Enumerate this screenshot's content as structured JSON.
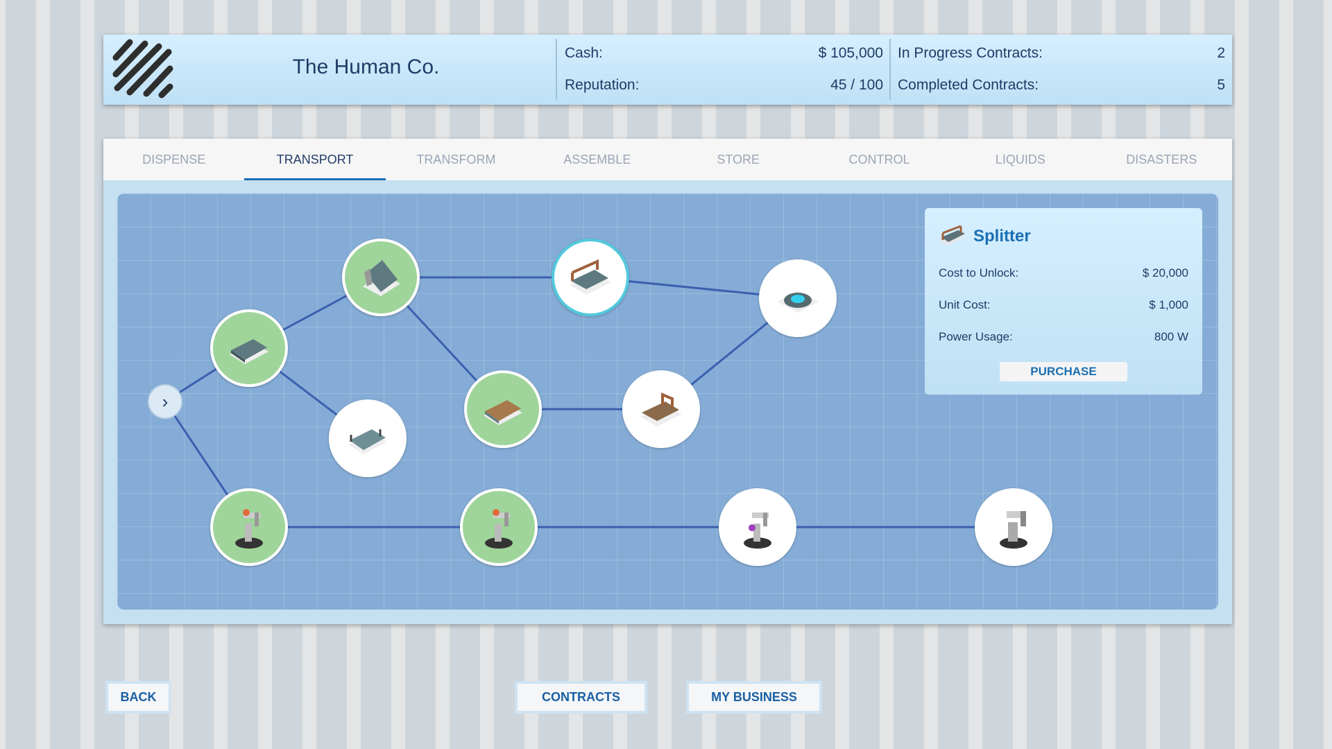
{
  "header": {
    "company_name": "The Human Co.",
    "logo": "striped-logo",
    "cash_label": "Cash:",
    "cash_value": "$ 105,000",
    "reputation_label": "Reputation:",
    "reputation_value": "45 / 100",
    "in_progress_label": "In Progress Contracts:",
    "in_progress_value": "2",
    "completed_label": "Completed Contracts:",
    "completed_value": "5"
  },
  "tabs": [
    {
      "label": "DISPENSE"
    },
    {
      "label": "TRANSPORT",
      "active": true
    },
    {
      "label": "TRANSFORM"
    },
    {
      "label": "ASSEMBLE"
    },
    {
      "label": "STORE"
    },
    {
      "label": "CONTROL"
    },
    {
      "label": "LIQUIDS"
    },
    {
      "label": "DISASTERS"
    }
  ],
  "tree": {
    "nodes": [
      {
        "id": "n1",
        "icon": "conveyor",
        "unlocked": true
      },
      {
        "id": "n2",
        "icon": "ramp-conveyor",
        "unlocked": true
      },
      {
        "id": "n3",
        "icon": "roller-conveyor",
        "unlocked": false
      },
      {
        "id": "n4",
        "icon": "splitter",
        "unlocked": false,
        "selected": true
      },
      {
        "id": "n5",
        "icon": "wooden-conveyor",
        "unlocked": true
      },
      {
        "id": "n6",
        "icon": "sorter",
        "unlocked": false
      },
      {
        "id": "n7",
        "icon": "teleporter",
        "unlocked": false
      },
      {
        "id": "n8",
        "icon": "robot-arm",
        "unlocked": true
      },
      {
        "id": "n9",
        "icon": "robot-arm",
        "unlocked": true
      },
      {
        "id": "n10",
        "icon": "robot-arm-purple",
        "unlocked": false
      },
      {
        "id": "n11",
        "icon": "robot-arm-heavy",
        "unlocked": false
      }
    ],
    "edges": [
      [
        "start",
        "n1"
      ],
      [
        "start",
        "n8"
      ],
      [
        "n1",
        "n2"
      ],
      [
        "n1",
        "n3"
      ],
      [
        "n2",
        "n4"
      ],
      [
        "n2",
        "n5"
      ],
      [
        "n4",
        "n7"
      ],
      [
        "n5",
        "n6"
      ],
      [
        "n6",
        "n7"
      ],
      [
        "n8",
        "n9"
      ],
      [
        "n9",
        "n10"
      ],
      [
        "n10",
        "n11"
      ]
    ],
    "edge_color": "#3b5fb0"
  },
  "details": {
    "title": "Splitter",
    "icon": "splitter",
    "cost_label": "Cost to Unlock:",
    "cost_value": "$ 20,000",
    "unit_label": "Unit Cost:",
    "unit_value": "$ 1,000",
    "power_label": "Power Usage:",
    "power_value": "800 W",
    "purchase_label": "PURCHASE"
  },
  "footer": {
    "back_label": "BACK",
    "contracts_label": "CONTRACTS",
    "business_label": "MY BUSINESS"
  }
}
